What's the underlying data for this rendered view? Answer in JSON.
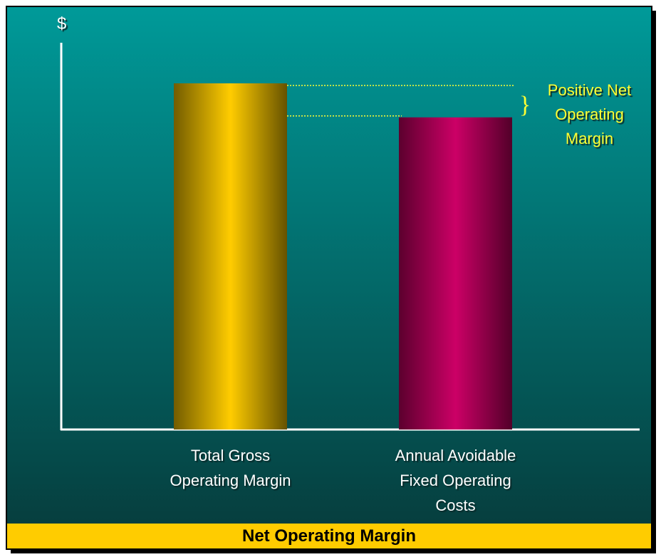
{
  "chart_data": {
    "type": "bar",
    "title": "Net Operating Margin",
    "y_label": "$",
    "categories": [
      "Total Gross Operating Margin",
      "Annual Avoidable Fixed Operating Costs"
    ],
    "values": [
      89.5,
      80.7
    ],
    "colors": [
      "#ffcc00",
      "#cc0066"
    ],
    "ylim": [
      0,
      100
    ],
    "annotation": "Positive Net Operating Margin"
  }
}
